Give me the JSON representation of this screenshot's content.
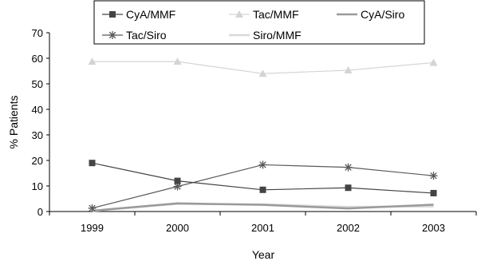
{
  "chart_data": {
    "type": "line",
    "title": "",
    "xlabel": "Year",
    "ylabel": "% Patients",
    "x": [
      "1999",
      "2000",
      "2001",
      "2002",
      "2003"
    ],
    "ylim": [
      0,
      70
    ],
    "yticks": [
      0,
      10,
      20,
      30,
      40,
      50,
      60,
      70
    ],
    "grid": false,
    "legend_position": "top",
    "series": [
      {
        "name": "CyA/MMF",
        "values": [
          19,
          12,
          8.5,
          9.3,
          7.2
        ],
        "color": "#444444",
        "marker": "square"
      },
      {
        "name": "Tac/MMF",
        "values": [
          58.7,
          58.7,
          54,
          55.3,
          58.3
        ],
        "color": "#d4d4d4",
        "marker": "triangle"
      },
      {
        "name": "CyA/Siro",
        "values": [
          0.3,
          3.2,
          2.6,
          1.2,
          2.7
        ],
        "color": "#9a9a9a",
        "marker": "none"
      },
      {
        "name": "Tac/Siro",
        "values": [
          1.3,
          9.8,
          18.3,
          17.3,
          14
        ],
        "color": "#5a5a5a",
        "marker": "asterisk"
      },
      {
        "name": "Siro/MMF",
        "values": [
          0.2,
          3,
          2.8,
          1.8,
          2
        ],
        "color": "#d8d8d8",
        "marker": "none"
      }
    ]
  }
}
